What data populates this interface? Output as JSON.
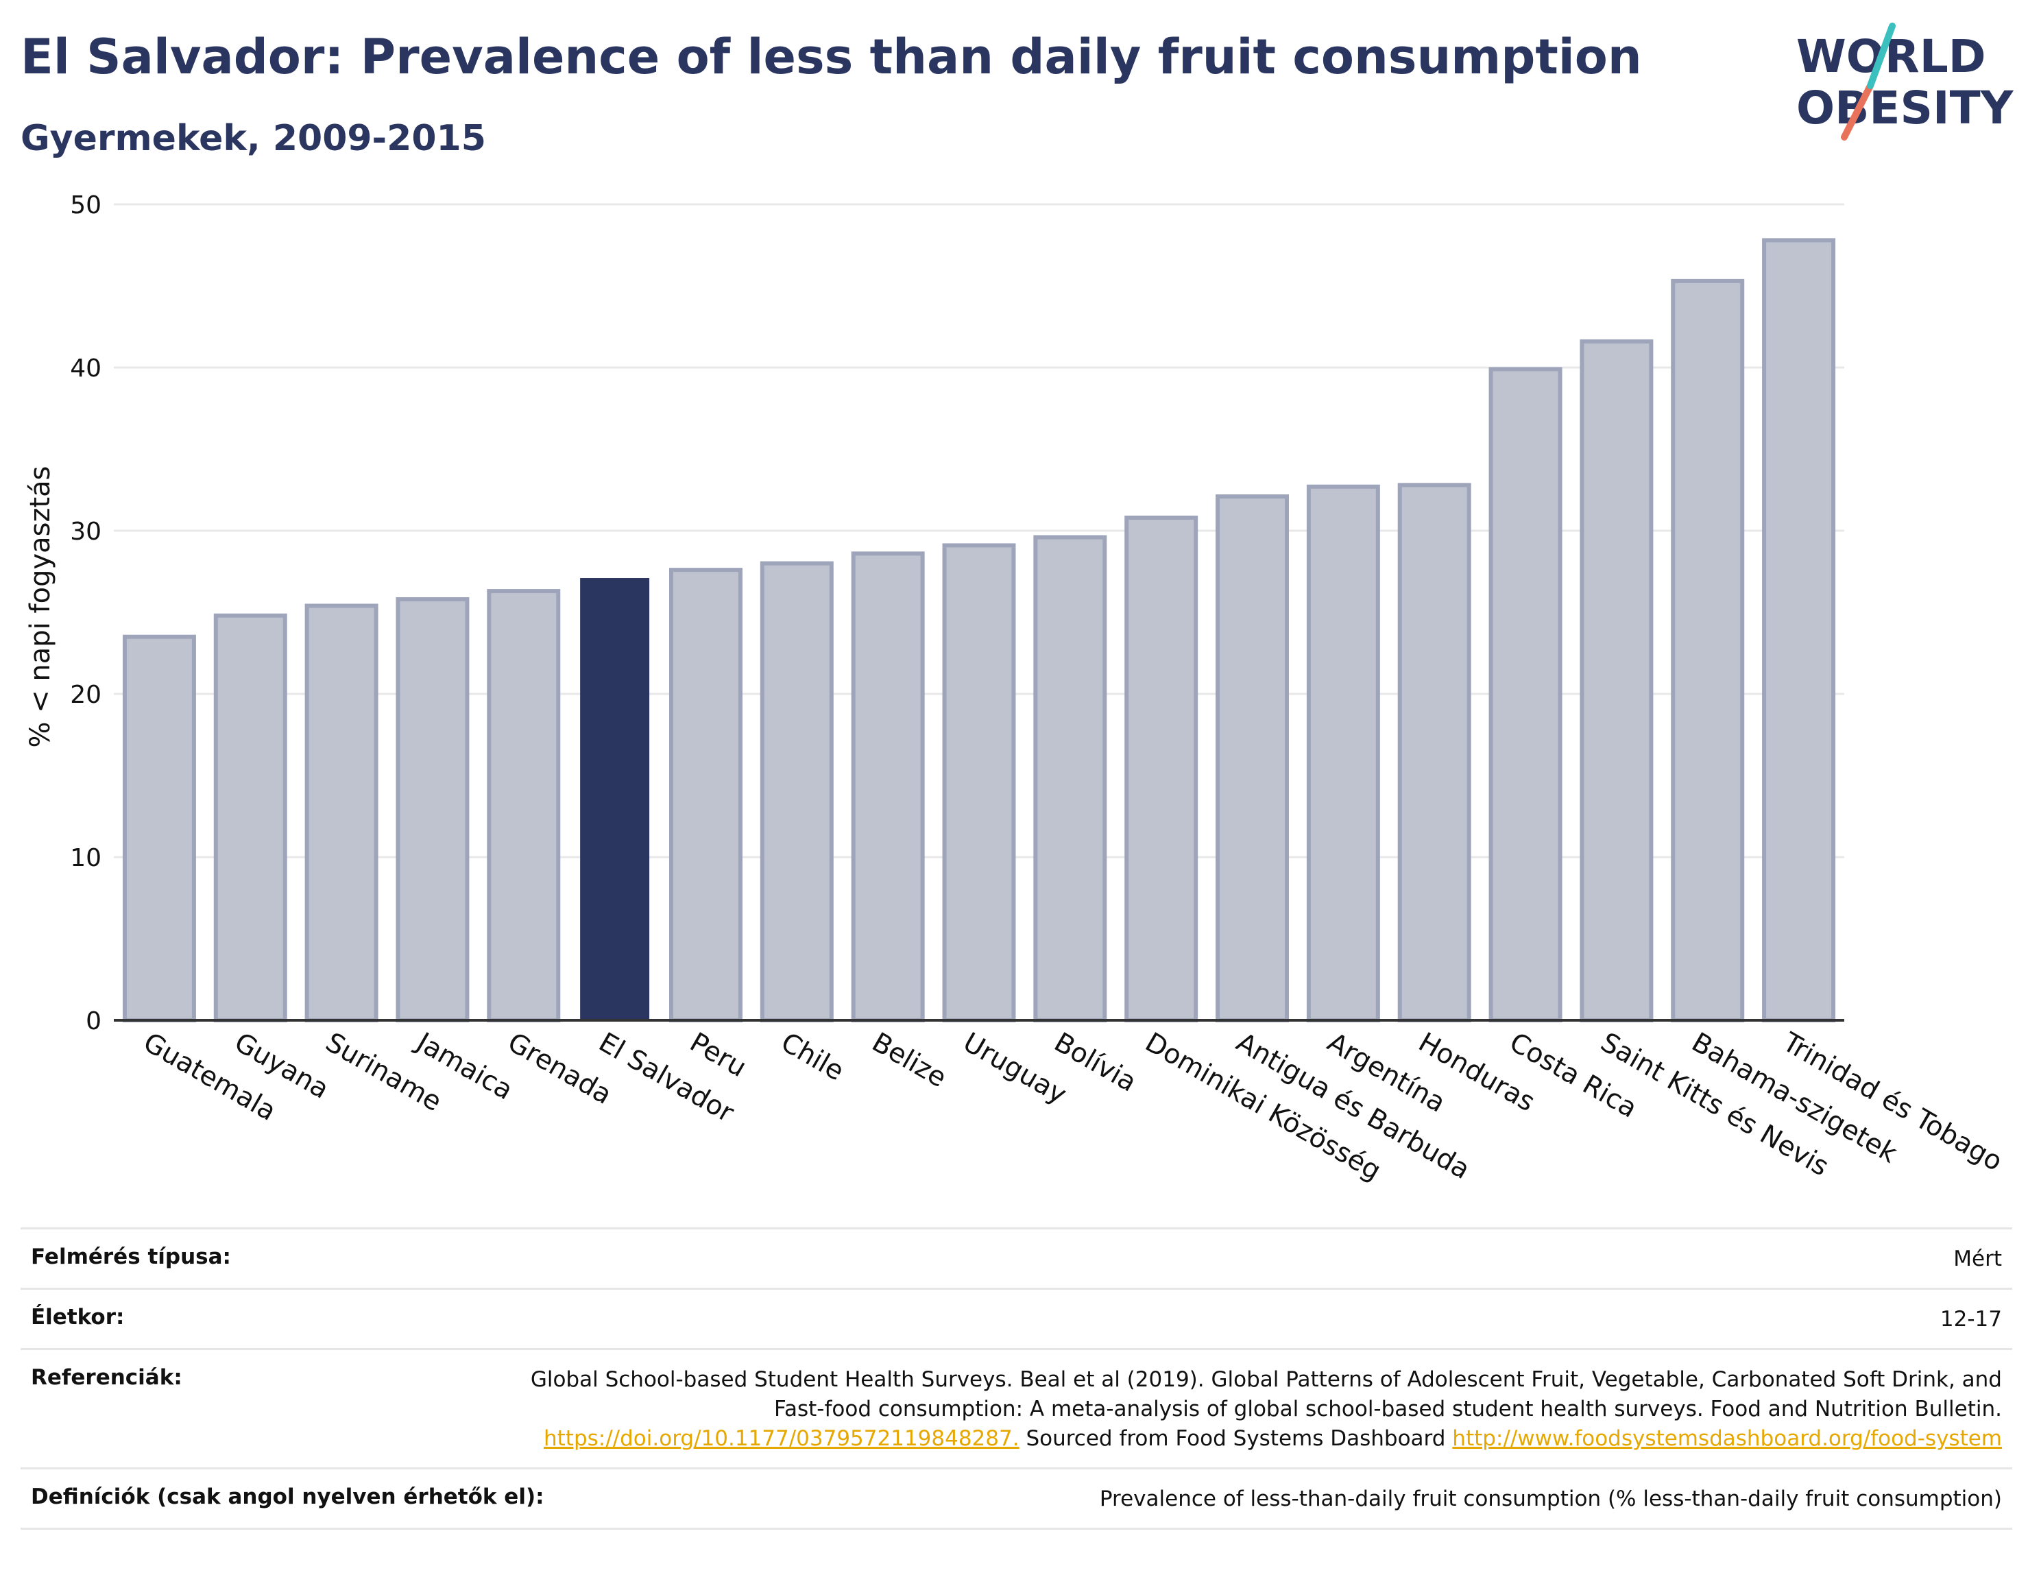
{
  "header": {
    "title": "El Salvador: Prevalence of less than daily fruit consumption",
    "subtitle": "Gyermekek, 2009-2015"
  },
  "logo": {
    "line1": "WORLD",
    "line2": "OBESITY"
  },
  "colors": {
    "highlight": "#2a3560",
    "bar": "#bfc3d0",
    "bar_stroke": "#9ea4ba",
    "grid": "#e8e8e8",
    "axis": "#333333",
    "link": "#e6a800",
    "logo_teal": "#3bbfbf",
    "logo_coral": "#e8735a"
  },
  "chart_data": {
    "type": "bar",
    "ylabel": "% < napi fogyasztás",
    "ylim": [
      0,
      50
    ],
    "yticks": [
      0,
      10,
      20,
      30,
      40,
      50
    ],
    "grid": true,
    "highlight": "El Salvador",
    "categories": [
      "Guatemala",
      "Guyana",
      "Suriname",
      "Jamaica",
      "Grenada",
      "El Salvador",
      "Peru",
      "Chile",
      "Belize",
      "Uruguay",
      "Bolívia",
      "Dominikai Közösség",
      "Antigua és Barbuda",
      "Argentína",
      "Honduras",
      "Costa Rica",
      "Saint Kitts és Nevis",
      "Bahama-szigetek",
      "Trinidad és Tobago"
    ],
    "values": [
      23.5,
      24.8,
      25.4,
      25.8,
      26.3,
      27.1,
      27.6,
      28.0,
      28.6,
      29.1,
      29.6,
      30.8,
      32.1,
      32.7,
      32.8,
      39.9,
      41.6,
      45.3,
      47.8
    ]
  },
  "meta": {
    "survey_type_label": "Felmérés típusa:",
    "survey_type_value": "Mért",
    "age_label": "Életkor:",
    "age_value": "12-17",
    "references_label": "Referenciák:",
    "references_text1": "Global School-based Student Health Surveys. Beal et al (2019). Global Patterns of Adolescent Fruit, Vegetable, Carbonated Soft Drink, and Fast-food consumption: A meta-analysis of global school-based student health surveys. Food and Nutrition Bulletin.",
    "references_link1": "https://doi.org/10.1177/0379572119848287.",
    "references_text2": "Sourced from Food Systems Dashboard",
    "references_link2": "http://www.foodsystemsdashboard.org/food-system",
    "definitions_label": "Definíciók (csak angol nyelven érhetők el):",
    "definitions_value": "Prevalence of less-than-daily fruit consumption (% less-than-daily fruit consumption)"
  }
}
